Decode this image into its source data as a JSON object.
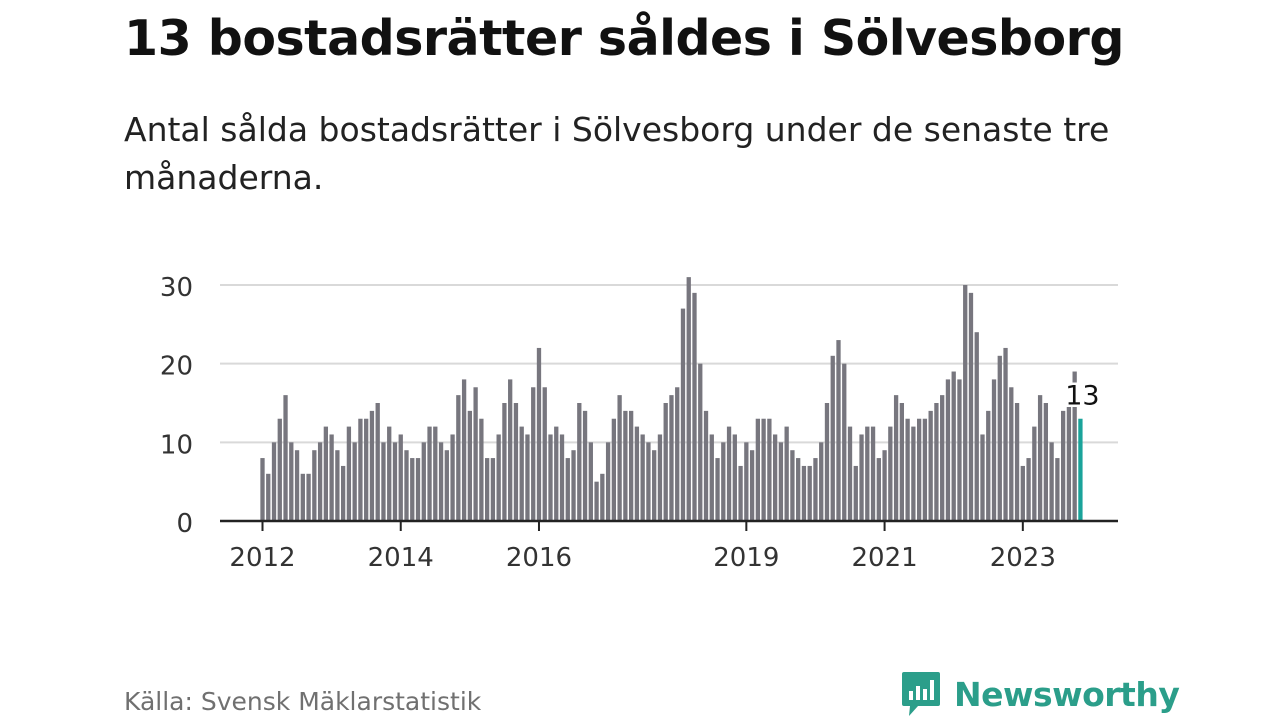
{
  "header": {
    "title": "13 bostadsrätter såldes i Sölvesborg",
    "subtitle": "Antal sålda bostadsrätter i Sölvesborg under de senaste tre månaderna."
  },
  "footer": {
    "source": "Källa: Svensk Mäklarstatistik",
    "brand": "Newsworthy",
    "brand_icon": "newsworthy-chart-bubble-icon"
  },
  "colors": {
    "bar": "#77767e",
    "highlight": "#1aa39a",
    "grid": "#d9d9d9",
    "axis": "#222222",
    "brand": "#2b9e8a"
  },
  "chart_data": {
    "type": "bar",
    "title": "",
    "xlabel": "",
    "ylabel": "",
    "ylim": [
      0,
      33
    ],
    "yticks": [
      0,
      10,
      20,
      30
    ],
    "xtick_labels": [
      "2012",
      "2014",
      "2016",
      "2019",
      "2021",
      "2023"
    ],
    "grid": true,
    "start": "2012-01",
    "frequency": "monthly, three-month rolling total",
    "values": [
      8,
      6,
      10,
      13,
      16,
      10,
      9,
      6,
      6,
      9,
      10,
      12,
      11,
      9,
      7,
      12,
      10,
      13,
      13,
      14,
      15,
      10,
      12,
      10,
      11,
      9,
      8,
      8,
      10,
      12,
      12,
      10,
      9,
      11,
      16,
      18,
      14,
      17,
      13,
      8,
      8,
      11,
      15,
      18,
      15,
      12,
      11,
      17,
      22,
      17,
      11,
      12,
      11,
      8,
      9,
      15,
      14,
      10,
      5,
      6,
      10,
      13,
      16,
      14,
      14,
      12,
      11,
      10,
      9,
      11,
      15,
      16,
      17,
      27,
      31,
      29,
      20,
      14,
      11,
      8,
      10,
      12,
      11,
      7,
      10,
      9,
      13,
      13,
      13,
      11,
      10,
      12,
      9,
      8,
      7,
      7,
      8,
      10,
      15,
      21,
      23,
      20,
      12,
      7,
      11,
      12,
      12,
      8,
      9,
      12,
      16,
      15,
      13,
      12,
      13,
      13,
      14,
      15,
      16,
      18,
      19,
      18,
      30,
      29,
      24,
      11,
      14,
      18,
      21,
      22,
      17,
      15,
      7,
      8,
      12,
      16,
      15,
      10,
      8,
      14,
      15,
      19,
      13
    ],
    "highlight": {
      "label": "13",
      "value": 13
    }
  }
}
